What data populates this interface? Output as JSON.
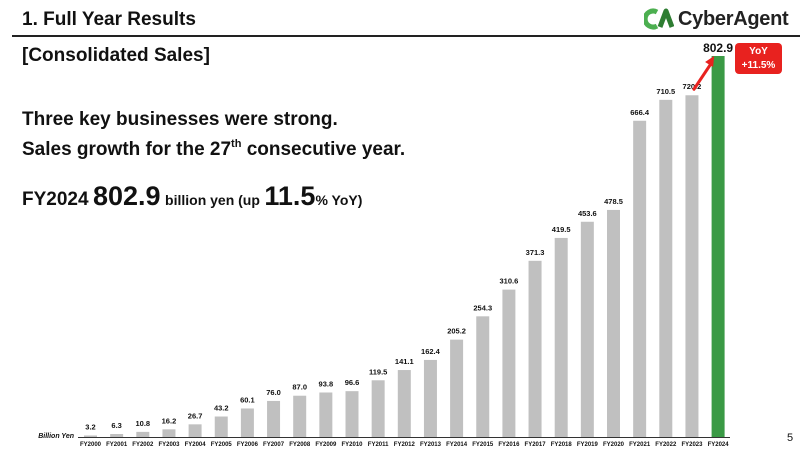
{
  "header": {
    "title": "1. Full Year Results",
    "logo_text": "CyberAgent",
    "logo_mark": "CA"
  },
  "section_title": "[Consolidated Sales]",
  "headline": {
    "line1": "Three key businesses were strong.",
    "line2_pre": "Sales growth for the 27",
    "line2_sup": "th",
    "line2_post": " consecutive year."
  },
  "fy_summary": {
    "year": "FY2024",
    "value": "802.9",
    "mid": "billion yen (up",
    "growth": "11.5",
    "suffix": "% YoY)"
  },
  "yoy_badge": {
    "label": "YoY",
    "value": "+11.5%"
  },
  "page_number": "5",
  "colors": {
    "bar": "#c0c0c0",
    "highlight_bar": "#3a9a45",
    "accent_red": "#e8221f",
    "logo_green": "#4caf50"
  },
  "chart_data": {
    "type": "bar",
    "ylabel": "Billion Yen",
    "categories": [
      "FY2000",
      "FY2001",
      "FY2002",
      "FY2003",
      "FY2004",
      "FY2005",
      "FY2006",
      "FY2007",
      "FY2008",
      "FY2009",
      "FY2010",
      "FY2011",
      "FY2012",
      "FY2013",
      "FY2014",
      "FY2015",
      "FY2016",
      "FY2017",
      "FY2018",
      "FY2019",
      "FY2020",
      "FY2021",
      "FY2022",
      "FY2023",
      "FY2024"
    ],
    "values": [
      3.2,
      6.3,
      10.8,
      16.2,
      26.7,
      43.2,
      60.1,
      76.0,
      87.0,
      93.8,
      96.6,
      119.5,
      141.1,
      162.4,
      205.2,
      254.3,
      310.6,
      371.3,
      419.5,
      453.6,
      478.5,
      666.4,
      710.5,
      720.2,
      802.9
    ],
    "labels": [
      "3.2",
      "6.3",
      "10.8",
      "16.2",
      "26.7",
      "43.2",
      "60.1",
      "76.0",
      "87.0",
      "93.8",
      "96.6",
      "119.5",
      "141.1",
      "162.4",
      "205.2",
      "254.3",
      "310.6",
      "371.3",
      "419.5",
      "453.6",
      "478.5",
      "666.4",
      "710.5",
      "720.2",
      "802.9"
    ],
    "highlight_index": 24,
    "grid": false,
    "ylim": [
      0,
      802.9
    ]
  }
}
